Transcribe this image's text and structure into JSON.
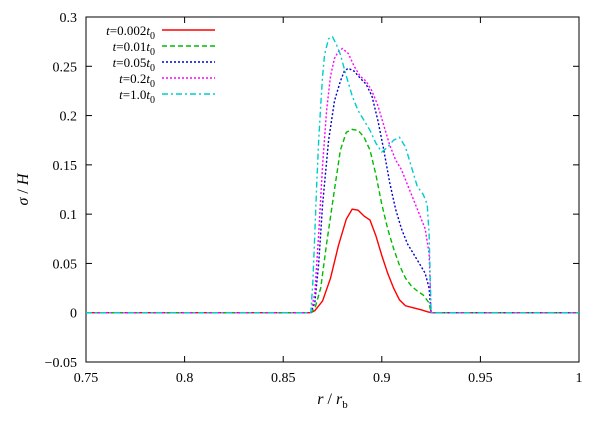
{
  "chart_data": {
    "type": "line",
    "title": "",
    "xlabel": "r / r_b",
    "ylabel": "σ / H",
    "xlim": [
      0.75,
      1.0
    ],
    "ylim": [
      -0.05,
      0.3
    ],
    "x_ticks": [
      "0.75",
      "0.8",
      "0.85",
      "0.9",
      "0.95",
      "1"
    ],
    "y_ticks": [
      "−0.05",
      "0",
      "0.05",
      "0.1",
      "0.15",
      "0.2",
      "0.25",
      "0.3"
    ],
    "grid": false,
    "legend_position": "top-left",
    "series": [
      {
        "name": "t=0.002t0",
        "color": "#ff0000",
        "dash": "solid",
        "x": [
          0.75,
          0.864,
          0.866,
          0.87,
          0.874,
          0.878,
          0.882,
          0.885,
          0.888,
          0.891,
          0.894,
          0.897,
          0.9,
          0.903,
          0.906,
          0.909,
          0.912,
          0.916,
          0.92,
          0.923,
          0.925,
          1.0
        ],
        "y": [
          0,
          0,
          0.002,
          0.012,
          0.035,
          0.068,
          0.095,
          0.105,
          0.104,
          0.098,
          0.094,
          0.078,
          0.058,
          0.04,
          0.025,
          0.013,
          0.007,
          0.005,
          0.003,
          0.001,
          0,
          0
        ]
      },
      {
        "name": "t=0.01t0",
        "color": "#00bb00",
        "dash": "dashed",
        "x": [
          0.75,
          0.864,
          0.866,
          0.869,
          0.872,
          0.876,
          0.879,
          0.882,
          0.885,
          0.888,
          0.891,
          0.894,
          0.897,
          0.9,
          0.903,
          0.906,
          0.909,
          0.912,
          0.915,
          0.918,
          0.921,
          0.924,
          0.925,
          1.0
        ],
        "y": [
          0,
          0,
          0.004,
          0.025,
          0.07,
          0.125,
          0.165,
          0.183,
          0.186,
          0.185,
          0.178,
          0.165,
          0.14,
          0.11,
          0.085,
          0.065,
          0.048,
          0.035,
          0.027,
          0.022,
          0.018,
          0.01,
          0,
          0
        ]
      },
      {
        "name": "t=0.05t0",
        "color": "#0000cc",
        "dash": "dotted",
        "x": [
          0.75,
          0.864,
          0.866,
          0.868,
          0.87,
          0.873,
          0.876,
          0.879,
          0.881,
          0.883,
          0.886,
          0.889,
          0.892,
          0.895,
          0.898,
          0.901,
          0.904,
          0.907,
          0.91,
          0.913,
          0.916,
          0.919,
          0.922,
          0.924,
          0.925,
          1.0
        ],
        "y": [
          0,
          0,
          0.01,
          0.05,
          0.11,
          0.175,
          0.215,
          0.235,
          0.245,
          0.248,
          0.245,
          0.238,
          0.232,
          0.22,
          0.195,
          0.165,
          0.132,
          0.105,
          0.085,
          0.07,
          0.06,
          0.05,
          0.04,
          0.025,
          0,
          0
        ]
      },
      {
        "name": "t=0.2t0",
        "color": "#ff00ff",
        "dash": "dotted",
        "x": [
          0.75,
          0.864,
          0.866,
          0.868,
          0.87,
          0.872,
          0.874,
          0.876,
          0.878,
          0.88,
          0.883,
          0.886,
          0.889,
          0.892,
          0.895,
          0.898,
          0.901,
          0.904,
          0.907,
          0.91,
          0.913,
          0.916,
          0.919,
          0.922,
          0.924,
          0.925,
          1.0
        ],
        "y": [
          0,
          0,
          0.02,
          0.08,
          0.15,
          0.205,
          0.24,
          0.258,
          0.265,
          0.268,
          0.263,
          0.25,
          0.24,
          0.235,
          0.225,
          0.21,
          0.19,
          0.17,
          0.155,
          0.145,
          0.13,
          0.115,
          0.1,
          0.085,
          0.06,
          0,
          0
        ]
      },
      {
        "name": "t=1.0t0",
        "color": "#00cccc",
        "dash": "dashdot",
        "x": [
          0.75,
          0.864,
          0.865,
          0.866,
          0.867,
          0.868,
          0.869,
          0.87,
          0.871,
          0.873,
          0.875,
          0.877,
          0.879,
          0.882,
          0.885,
          0.888,
          0.891,
          0.894,
          0.897,
          0.9,
          0.903,
          0.906,
          0.909,
          0.912,
          0.915,
          0.918,
          0.921,
          0.923,
          0.924,
          0.925,
          1.0
        ],
        "y": [
          0,
          0,
          0.03,
          0.08,
          0.13,
          0.175,
          0.21,
          0.24,
          0.262,
          0.278,
          0.28,
          0.272,
          0.262,
          0.24,
          0.22,
          0.205,
          0.195,
          0.185,
          0.172,
          0.163,
          0.168,
          0.175,
          0.178,
          0.168,
          0.148,
          0.128,
          0.12,
          0.11,
          0.08,
          0,
          0
        ]
      }
    ]
  },
  "legend": {
    "entries": [
      {
        "prefix": "t",
        "value": "=0.002",
        "suffix": "t",
        "sub": "0"
      },
      {
        "prefix": "t",
        "value": "=0.01",
        "suffix": "t",
        "sub": "0"
      },
      {
        "prefix": "t",
        "value": "=0.05",
        "suffix": "t",
        "sub": "0"
      },
      {
        "prefix": "t",
        "value": "=0.2",
        "suffix": "t",
        "sub": "0"
      },
      {
        "prefix": "t",
        "value": "=1.0",
        "suffix": "t",
        "sub": "0"
      }
    ]
  },
  "axis_text": {
    "x_main": "r",
    "x_slash": " / ",
    "x_den": "r",
    "x_sub": "b",
    "y_main": "σ",
    "y_slash": " / ",
    "y_den": "H"
  }
}
